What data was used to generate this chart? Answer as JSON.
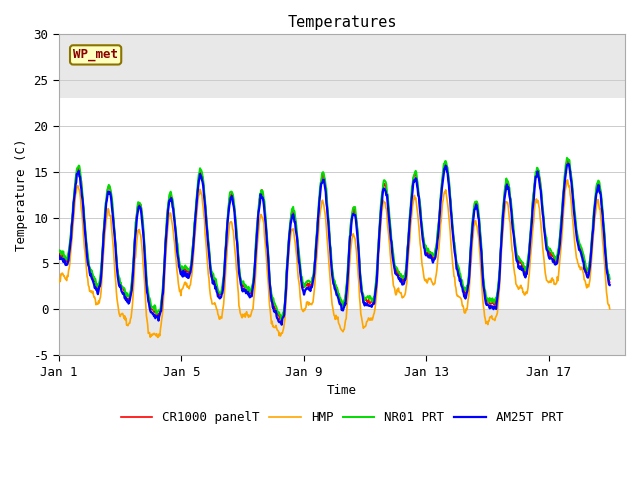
{
  "title": "Temperatures",
  "xlabel": "Time",
  "ylabel": "Temperature (C)",
  "ylim": [
    -5,
    30
  ],
  "xlim_days": 18.5,
  "yticks": [
    -5,
    0,
    5,
    10,
    15,
    20,
    25,
    30
  ],
  "xtick_positions": [
    0,
    4,
    8,
    12,
    16
  ],
  "xtick_labels": [
    "Jan 1",
    "Jan 5",
    "Jan 9",
    "Jan 13",
    "Jan 17"
  ],
  "shaded_gray_low": -5,
  "shaded_gray_high": 0,
  "shaded_gray2_low": 23,
  "shaded_gray2_high": 30,
  "wp_met_label": "WP_met",
  "colors": [
    "red",
    "orange",
    "#00dd00",
    "blue"
  ],
  "labels": [
    "CR1000 panelT",
    "HMP",
    "NR01 PRT",
    "AM25T PRT"
  ],
  "linewidths": [
    1.2,
    1.2,
    1.4,
    1.6
  ],
  "plot_bg": "#e8e8e8",
  "white_band_low": 0,
  "white_band_high": 23
}
